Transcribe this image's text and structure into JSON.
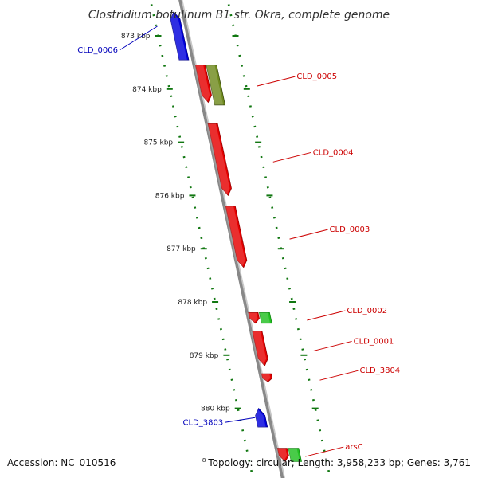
{
  "title": "Clostridium botulinum B1 str. Okra, complete genome",
  "footer": {
    "accession": "Accession: NC_010516",
    "topology": "Topology: circular; Length: 3,958,233 bp; Genes: 3,761",
    "stray_tick": "8"
  },
  "colors": {
    "forward_gene": "#e60000",
    "reverse_gene": "#0000dd",
    "olive_gene": "#6f8a1e",
    "green_gene": "#22c022",
    "backbone": "#888888",
    "tick": "#117711",
    "label_red": "#cc0000",
    "label_blue": "#0000bb"
  },
  "ticks": [
    {
      "label": "873 kbp",
      "kbp": 873
    },
    {
      "label": "874 kbp",
      "kbp": 874
    },
    {
      "label": "875 kbp",
      "kbp": 875
    },
    {
      "label": "876 kbp",
      "kbp": 876
    },
    {
      "label": "877 kbp",
      "kbp": 877
    },
    {
      "label": "878 kbp",
      "kbp": 878
    },
    {
      "label": "879 kbp",
      "kbp": 879
    },
    {
      "label": "880 kbp",
      "kbp": 880
    }
  ],
  "genes": [
    {
      "name": "CLD_0006",
      "start_kbp": 872.55,
      "end_kbp": 873.45,
      "strand": "reverse",
      "color": "blue",
      "label_side": "left"
    },
    {
      "name": "CLD_0005",
      "start_kbp": 873.55,
      "end_kbp": 874.25,
      "strand": "forward",
      "color": "red",
      "label_side": "right"
    },
    {
      "name": "CLD_0004",
      "start_kbp": 874.65,
      "end_kbp": 876.0,
      "strand": "forward",
      "color": "red",
      "label_side": "right"
    },
    {
      "name": "CLD_0003",
      "start_kbp": 876.2,
      "end_kbp": 877.35,
      "strand": "forward",
      "color": "red",
      "label_side": "right"
    },
    {
      "name": "CLD_0002",
      "start_kbp": 878.2,
      "end_kbp": 878.4,
      "strand": "forward",
      "color": "red",
      "label_side": "right"
    },
    {
      "name": "CLD_0001",
      "start_kbp": 878.55,
      "end_kbp": 879.2,
      "strand": "forward",
      "color": "red",
      "label_side": "right"
    },
    {
      "name": "CLD_3804",
      "start_kbp": 879.35,
      "end_kbp": 879.5,
      "strand": "forward",
      "color": "red",
      "label_side": "right"
    },
    {
      "name": "CLD_3803",
      "start_kbp": 880.0,
      "end_kbp": 880.35,
      "strand": "reverse",
      "color": "blue",
      "label_side": "left"
    },
    {
      "name": "arsC",
      "start_kbp": 880.75,
      "end_kbp": 881.0,
      "strand": "forward",
      "color": "red",
      "label_side": "right"
    }
  ],
  "unlabeled_features": [
    {
      "start_kbp": 873.55,
      "end_kbp": 874.3,
      "color": "olive"
    },
    {
      "start_kbp": 878.2,
      "end_kbp": 878.4,
      "color": "green"
    },
    {
      "start_kbp": 880.75,
      "end_kbp": 881.0,
      "color": "green"
    }
  ]
}
